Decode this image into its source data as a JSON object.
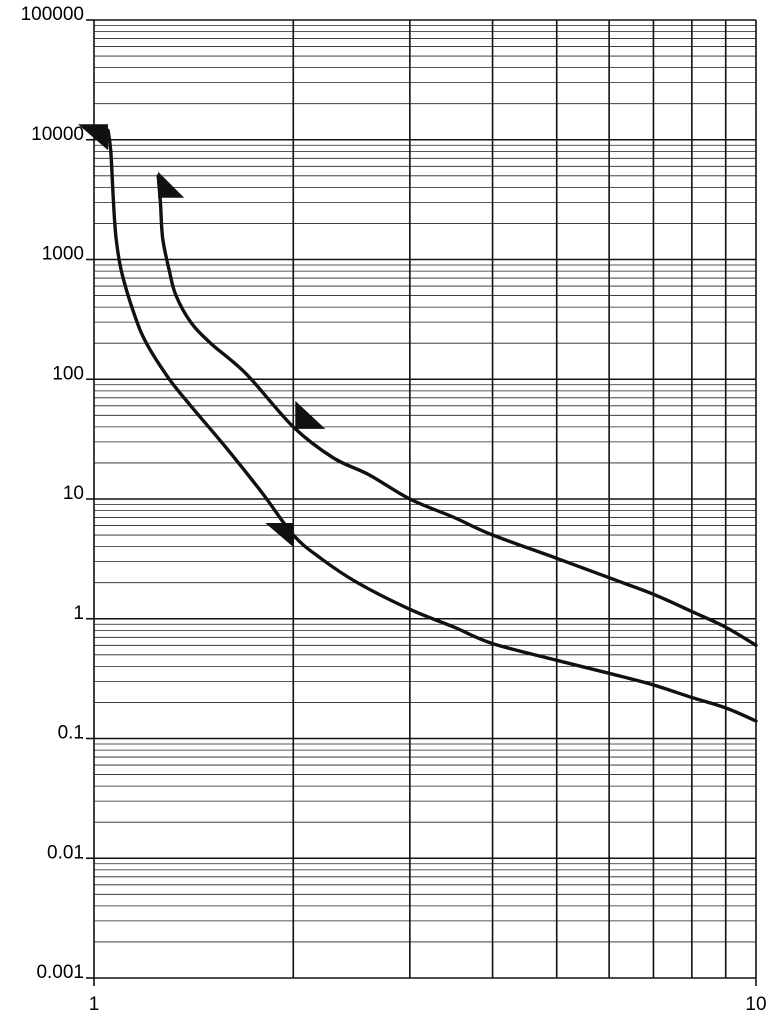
{
  "chart_data": {
    "type": "line",
    "title": "",
    "xlabel": "",
    "ylabel": "",
    "xscale": "log",
    "yscale": "log",
    "xlim": [
      1,
      10
    ],
    "ylim": [
      0.001,
      100000
    ],
    "grid": true,
    "x_tick_labels": [
      "1",
      "10"
    ],
    "y_tick_labels": [
      "100000",
      "10000",
      "1000",
      "100",
      "10",
      "1",
      "0.1",
      "0.01",
      "0.001"
    ],
    "series": [
      {
        "points": [
          [
            1.05,
            12000
          ],
          [
            1.06,
            8000
          ],
          [
            1.07,
            3000
          ],
          [
            1.08,
            1500
          ],
          [
            1.1,
            800
          ],
          [
            1.15,
            350
          ],
          [
            1.2,
            200
          ],
          [
            1.3,
            100
          ],
          [
            1.4,
            60
          ],
          [
            1.6,
            25
          ],
          [
            1.8,
            11
          ],
          [
            2.0,
            5
          ],
          [
            2.2,
            3.2
          ],
          [
            2.5,
            2.0
          ],
          [
            3.0,
            1.2
          ],
          [
            3.5,
            0.85
          ],
          [
            4.0,
            0.62
          ],
          [
            5.0,
            0.45
          ],
          [
            6.0,
            0.35
          ],
          [
            7.0,
            0.28
          ],
          [
            8.0,
            0.22
          ],
          [
            9.0,
            0.18
          ],
          [
            10.0,
            0.14
          ]
        ]
      },
      {
        "points": [
          [
            1.25,
            5000
          ],
          [
            1.26,
            3000
          ],
          [
            1.27,
            1500
          ],
          [
            1.3,
            800
          ],
          [
            1.33,
            500
          ],
          [
            1.4,
            300
          ],
          [
            1.5,
            200
          ],
          [
            1.7,
            110
          ],
          [
            2.0,
            40
          ],
          [
            2.3,
            22
          ],
          [
            2.6,
            16
          ],
          [
            3.0,
            10
          ],
          [
            3.5,
            7
          ],
          [
            4.0,
            5
          ],
          [
            5.0,
            3.2
          ],
          [
            6.0,
            2.2
          ],
          [
            7.0,
            1.6
          ],
          [
            8.0,
            1.15
          ],
          [
            9.0,
            0.85
          ],
          [
            10.0,
            0.6
          ]
        ]
      }
    ]
  }
}
